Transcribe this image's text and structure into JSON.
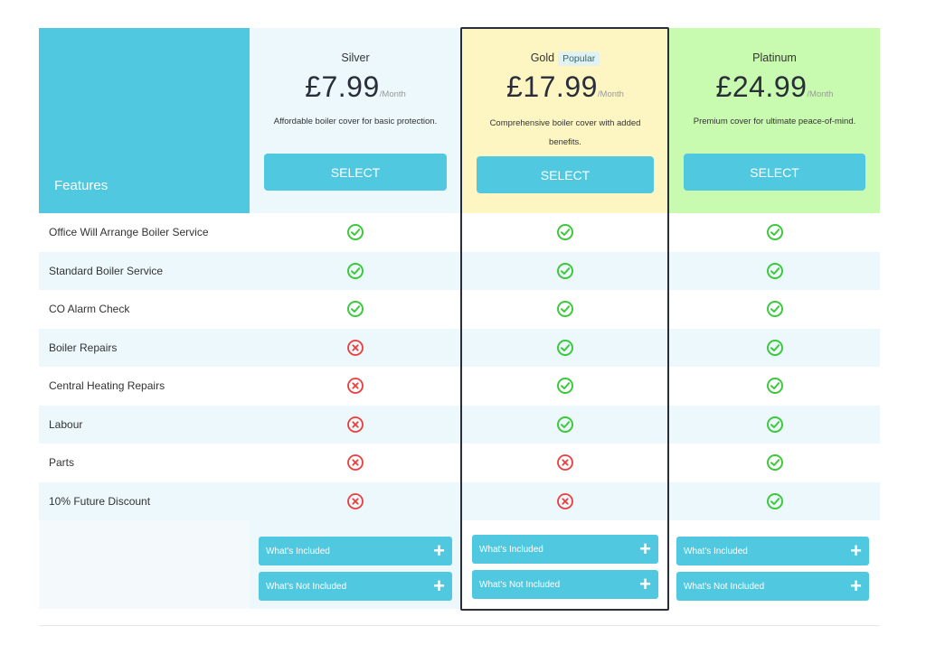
{
  "features_header": "Features",
  "plans": [
    {
      "name": "Silver",
      "badge": "",
      "price": "£7.99",
      "per": "/Month",
      "description": "Affordable boiler cover for basic protection.",
      "select": "SELECT"
    },
    {
      "name": "Gold",
      "badge": "Popular",
      "price": "£17.99",
      "per": "/Month",
      "description": "Comprehensive boiler cover with added benefits.",
      "select": "SELECT"
    },
    {
      "name": "Platinum",
      "badge": "",
      "price": "£24.99",
      "per": "/Month",
      "description": "Premium cover for ultimate peace-of-mind.",
      "select": "SELECT"
    }
  ],
  "features": [
    {
      "label": "Office Will Arrange Boiler Service",
      "values": [
        true,
        true,
        true
      ]
    },
    {
      "label": "Standard Boiler Service",
      "values": [
        true,
        true,
        true
      ]
    },
    {
      "label": "CO Alarm Check",
      "values": [
        true,
        true,
        true
      ]
    },
    {
      "label": "Boiler Repairs",
      "values": [
        false,
        true,
        true
      ]
    },
    {
      "label": "Central Heating Repairs",
      "values": [
        false,
        true,
        true
      ]
    },
    {
      "label": "Labour",
      "values": [
        false,
        true,
        true
      ]
    },
    {
      "label": "Parts",
      "values": [
        false,
        false,
        true
      ]
    },
    {
      "label": "10% Future Discount",
      "values": [
        false,
        false,
        true
      ]
    }
  ],
  "accordions": {
    "included": "What's Included",
    "not_included": "What's Not Included"
  },
  "icons": {
    "yes": "check-circle-icon",
    "no": "x-circle-icon"
  },
  "colors": {
    "accent": "#50c8df",
    "check": "#3cc93c",
    "cross": "#ee3b3b"
  }
}
